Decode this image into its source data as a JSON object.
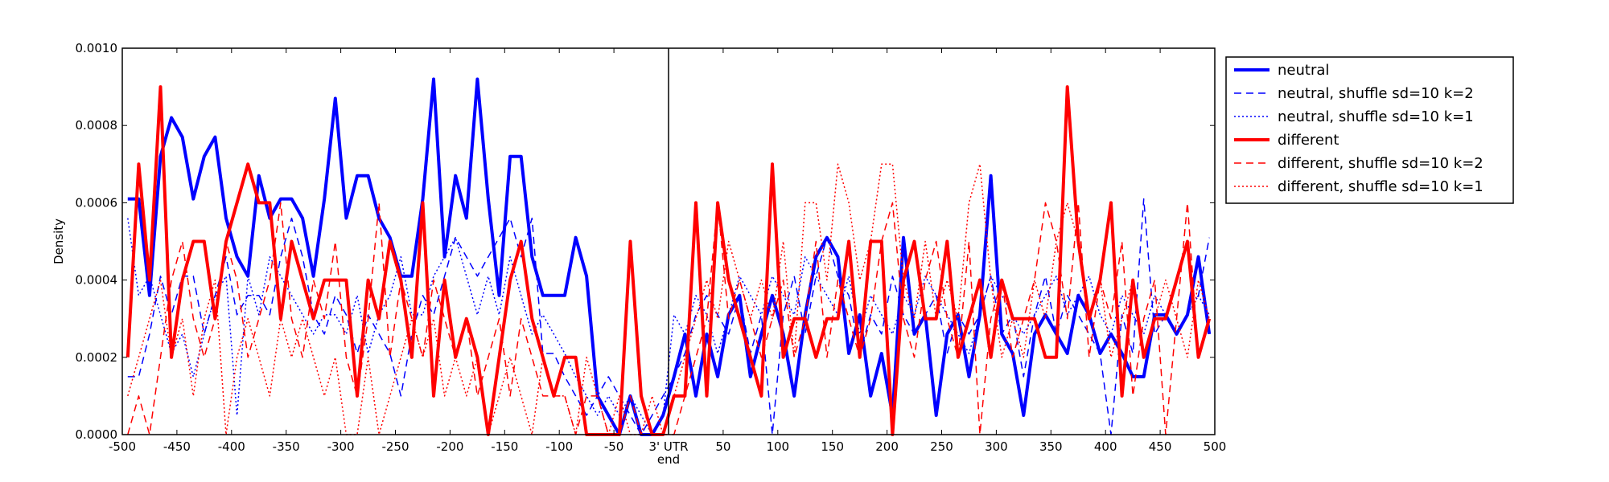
{
  "chart_data": {
    "type": "line",
    "xlabel": "end",
    "ylabel": "Density",
    "xlim": [
      -500,
      500
    ],
    "ylim": [
      0,
      0.001
    ],
    "grid": false,
    "legend_position": "outside-top-right",
    "x_ticks": [
      -500,
      -450,
      -400,
      -350,
      -300,
      -250,
      -200,
      -150,
      -100,
      -50,
      0,
      50,
      100,
      150,
      200,
      250,
      300,
      350,
      400,
      450,
      500
    ],
    "x_tick_labels": [
      "-500",
      "-450",
      "-400",
      "-350",
      "-300",
      "-250",
      "-200",
      "-150",
      "-100",
      "-50",
      "3' UTR",
      "50",
      "100",
      "150",
      "200",
      "250",
      "300",
      "350",
      "400",
      "450",
      "500"
    ],
    "y_ticks": [
      0,
      0.0002,
      0.0004,
      0.0006,
      0.0008,
      0.001
    ],
    "y_tick_labels": [
      "0.0000",
      "0.0002",
      "0.0004",
      "0.0006",
      "0.0008",
      "0.0010"
    ],
    "vline_x": 0,
    "x": [
      -495,
      -485,
      -475,
      -465,
      -455,
      -445,
      -435,
      -425,
      -415,
      -405,
      -395,
      -385,
      -375,
      -365,
      -355,
      -345,
      -335,
      -325,
      -315,
      -305,
      -295,
      -285,
      -275,
      -265,
      -255,
      -245,
      -235,
      -225,
      -215,
      -205,
      -195,
      -185,
      -175,
      -165,
      -155,
      -145,
      -135,
      -125,
      -115,
      -105,
      -95,
      -85,
      -75,
      -65,
      -55,
      -45,
      -35,
      -25,
      -15,
      -5,
      5,
      15,
      25,
      35,
      45,
      55,
      65,
      75,
      85,
      95,
      105,
      115,
      125,
      135,
      145,
      155,
      165,
      175,
      185,
      195,
      205,
      215,
      225,
      235,
      245,
      255,
      265,
      275,
      285,
      295,
      305,
      315,
      325,
      335,
      345,
      355,
      365,
      375,
      385,
      395,
      405,
      415,
      425,
      435,
      445,
      455,
      465,
      475,
      485,
      495
    ],
    "series": [
      {
        "name": "neutral",
        "color": "#0000ff",
        "style": "solid",
        "width": 4,
        "values": [
          0.00061,
          0.00061,
          0.00036,
          0.00072,
          0.00082,
          0.00077,
          0.00061,
          0.00072,
          0.00077,
          0.00056,
          0.00046,
          0.00041,
          0.00067,
          0.00056,
          0.00061,
          0.00061,
          0.00056,
          0.00041,
          0.00061,
          0.00087,
          0.00056,
          0.00067,
          0.00067,
          0.00056,
          0.00051,
          0.00041,
          0.00041,
          0.00061,
          0.00092,
          0.00046,
          0.00067,
          0.00056,
          0.00092,
          0.00061,
          0.00036,
          0.00072,
          0.00072,
          0.00046,
          0.00036,
          0.00036,
          0.00036,
          0.00051,
          0.00041,
          0.0001,
          5e-05,
          0.0,
          0.0001,
          0.0,
          0.0,
          5e-05,
          0.00015,
          0.00026,
          0.0001,
          0.00026,
          0.00015,
          0.00031,
          0.00036,
          0.00015,
          0.00026,
          0.00036,
          0.00026,
          0.0001,
          0.00031,
          0.00046,
          0.00051,
          0.00046,
          0.00021,
          0.00031,
          0.0001,
          0.00021,
          5e-05,
          0.00051,
          0.00026,
          0.00031,
          5e-05,
          0.00026,
          0.00031,
          0.00015,
          0.00031,
          0.00067,
          0.00026,
          0.00021,
          5e-05,
          0.00026,
          0.00031,
          0.00026,
          0.00021,
          0.00036,
          0.00031,
          0.00021,
          0.00026,
          0.00021,
          0.00015,
          0.00015,
          0.00031,
          0.00031,
          0.00026,
          0.00031,
          0.00046,
          0.00026
        ]
      },
      {
        "name": "neutral, shuffle sd=10 k=2",
        "color": "#0000ff",
        "style": "dashed",
        "width": 1.5,
        "values": [
          0.00015,
          0.00015,
          0.00026,
          0.00041,
          0.00031,
          0.00041,
          0.00041,
          0.00026,
          0.00036,
          0.00046,
          0.00031,
          0.00036,
          0.00036,
          0.00031,
          0.00046,
          0.00056,
          0.00046,
          0.00031,
          0.00026,
          0.00036,
          0.00031,
          0.00021,
          0.00031,
          0.00026,
          0.00021,
          0.0001,
          0.00026,
          0.00036,
          0.00031,
          0.00041,
          0.00051,
          0.00046,
          0.00041,
          0.00046,
          0.00051,
          0.00056,
          0.00046,
          0.00056,
          0.00021,
          0.00021,
          0.00015,
          0.0001,
          5e-05,
          0.0001,
          0.00015,
          0.0001,
          5e-05,
          0.0,
          5e-05,
          0.0001,
          0.00015,
          0.00021,
          0.00031,
          0.00036,
          0.00031,
          0.00026,
          0.00036,
          0.00021,
          0.00031,
          0.0,
          0.00031,
          0.00041,
          0.00026,
          0.00041,
          0.00051,
          0.00041,
          0.00036,
          0.00021,
          0.00031,
          0.00026,
          0.00041,
          0.00031,
          0.00026,
          0.00031,
          0.00036,
          0.00021,
          0.00031,
          0.00026,
          0.00031,
          0.00041,
          0.00026,
          0.00031,
          0.00015,
          0.00031,
          0.00041,
          0.00026,
          0.00036,
          0.00031,
          0.00026,
          0.00021,
          0.0,
          0.00031,
          0.00021,
          0.00061,
          0.00026,
          0.00031,
          0.00026,
          0.00031,
          0.00036,
          0.00051
        ]
      },
      {
        "name": "neutral, shuffle sd=10 k=1",
        "color": "#0000ff",
        "style": "dotted",
        "width": 1.5,
        "values": [
          0.00056,
          0.00036,
          0.00041,
          0.00031,
          0.00021,
          0.00026,
          0.00015,
          0.00026,
          0.00036,
          0.00041,
          5e-05,
          0.00041,
          0.00031,
          0.00046,
          0.00041,
          0.00036,
          0.00031,
          0.00026,
          0.00031,
          0.00031,
          0.00026,
          0.00036,
          0.00021,
          0.00031,
          0.00036,
          0.00046,
          0.00031,
          0.00031,
          0.00041,
          0.00046,
          0.00051,
          0.00041,
          0.00031,
          0.00041,
          0.00031,
          0.00046,
          0.00036,
          0.00026,
          0.00031,
          0.00026,
          0.00021,
          0.00015,
          0.0001,
          5e-05,
          0.0001,
          5e-05,
          0.0001,
          5e-05,
          0.0,
          5e-05,
          0.00031,
          0.00026,
          0.00036,
          0.00031,
          0.00021,
          0.00031,
          0.00041,
          0.00036,
          0.00031,
          0.00041,
          0.00036,
          0.00031,
          0.00046,
          0.00041,
          0.00036,
          0.00031,
          0.00041,
          0.00026,
          0.00036,
          0.00031,
          0.00026,
          0.00036,
          0.00031,
          0.00041,
          0.00036,
          0.00031,
          0.00026,
          0.00021,
          0.00031,
          0.00041,
          0.00036,
          0.00031,
          0.00026,
          0.00031,
          0.00036,
          0.00041,
          0.00031,
          0.00036,
          0.00041,
          0.00031,
          0.00026,
          0.00036,
          0.00031,
          0.00026,
          0.00036,
          0.00031,
          0.00026,
          0.00031,
          0.00036,
          0.00031
        ]
      },
      {
        "name": "different",
        "color": "#ff0000",
        "style": "solid",
        "width": 4,
        "values": [
          0.0002,
          0.0007,
          0.0004,
          0.0009,
          0.0002,
          0.0004,
          0.0005,
          0.0005,
          0.0003,
          0.0005,
          0.0006,
          0.0007,
          0.0006,
          0.0006,
          0.0003,
          0.0005,
          0.0004,
          0.0003,
          0.0004,
          0.0004,
          0.0004,
          0.0001,
          0.0004,
          0.0003,
          0.0005,
          0.0004,
          0.0002,
          0.0006,
          0.0001,
          0.0004,
          0.0002,
          0.0003,
          0.0002,
          0.0,
          0.0002,
          0.0004,
          0.0005,
          0.0003,
          0.0002,
          0.0001,
          0.0002,
          0.0002,
          0.0,
          0.0,
          0.0,
          0.0,
          0.0005,
          0.0001,
          0.0,
          0.0,
          0.0001,
          0.0001,
          0.0006,
          0.0001,
          0.0006,
          0.0004,
          0.0003,
          0.0002,
          0.0001,
          0.0007,
          0.0002,
          0.0003,
          0.0003,
          0.0002,
          0.0003,
          0.0003,
          0.0005,
          0.0002,
          0.0005,
          0.0005,
          0.0,
          0.0004,
          0.0005,
          0.0003,
          0.0003,
          0.0005,
          0.0002,
          0.0003,
          0.0004,
          0.0002,
          0.0004,
          0.0003,
          0.0003,
          0.0003,
          0.0002,
          0.0002,
          0.0009,
          0.0005,
          0.0003,
          0.0004,
          0.0006,
          0.0001,
          0.0004,
          0.0002,
          0.0003,
          0.0003,
          0.0004,
          0.0005,
          0.0002,
          0.0003
        ]
      },
      {
        "name": "different, shuffle sd=10 k=2",
        "color": "#ff0000",
        "style": "dashed",
        "width": 1.5,
        "values": [
          0.0,
          0.0001,
          0.0,
          0.0002,
          0.0004,
          0.0005,
          0.0003,
          0.0002,
          0.0003,
          0.0005,
          0.0004,
          0.0002,
          0.0003,
          0.0004,
          0.0006,
          0.0003,
          0.0002,
          0.0004,
          0.0003,
          0.0005,
          0.0002,
          0.0001,
          0.0003,
          0.0006,
          0.0002,
          0.0004,
          0.0003,
          0.0002,
          0.0004,
          0.0003,
          0.0002,
          0.0003,
          0.0001,
          0.0002,
          0.0003,
          0.0001,
          0.0003,
          0.0002,
          0.0001,
          0.0001,
          0.0001,
          0.0,
          0.0001,
          0.0001,
          0.0,
          0.0,
          0.0001,
          0.0,
          0.0,
          0.0,
          0.0,
          0.0001,
          0.0002,
          0.0003,
          0.0006,
          0.0003,
          0.0004,
          0.0003,
          0.0002,
          0.0003,
          0.0004,
          0.0002,
          0.0003,
          0.0005,
          0.0002,
          0.0004,
          0.0003,
          0.0002,
          0.0003,
          0.0005,
          0.0006,
          0.0003,
          0.0002,
          0.0004,
          0.0005,
          0.0003,
          0.0002,
          0.0005,
          0.0,
          0.0003,
          0.0004,
          0.0002,
          0.0003,
          0.0004,
          0.0006,
          0.0005,
          0.0003,
          0.0006,
          0.0002,
          0.0004,
          0.0003,
          0.0005,
          0.0001,
          0.0003,
          0.0004,
          0.0,
          0.0003,
          0.0006,
          0.0002,
          0.0003
        ]
      },
      {
        "name": "different, shuffle sd=10 k=1",
        "color": "#ff0000",
        "style": "dotted",
        "width": 1.5,
        "values": [
          0.0001,
          0.0002,
          0.0003,
          0.0004,
          0.0002,
          0.0003,
          0.0001,
          0.0003,
          0.0004,
          0.0,
          0.0002,
          0.0003,
          0.0002,
          0.0001,
          0.0003,
          0.0002,
          0.0003,
          0.0002,
          0.0001,
          0.0002,
          0.0,
          0.0,
          0.0002,
          0.0,
          0.0001,
          0.0002,
          0.0003,
          0.0002,
          0.0003,
          0.0001,
          0.0002,
          0.0001,
          0.0002,
          0.0,
          0.0001,
          0.0002,
          0.0001,
          0.0,
          0.0002,
          0.0001,
          0.0001,
          0.0,
          0.0002,
          0.0001,
          0.0,
          0.0001,
          0.0,
          0.0,
          0.0001,
          0.0,
          0.0001,
          0.0002,
          0.0003,
          0.0004,
          0.0003,
          0.0005,
          0.0004,
          0.0003,
          0.0004,
          0.0003,
          0.0005,
          0.0002,
          0.0006,
          0.0006,
          0.0004,
          0.0007,
          0.0006,
          0.0004,
          0.0005,
          0.0007,
          0.0007,
          0.0004,
          0.0003,
          0.0005,
          0.0003,
          0.0004,
          0.0003,
          0.0006,
          0.0007,
          0.0004,
          0.0002,
          0.0003,
          0.0002,
          0.0004,
          0.0003,
          0.0005,
          0.0006,
          0.0005,
          0.0003,
          0.0004,
          0.0002,
          0.0003,
          0.0004,
          0.0002,
          0.0003,
          0.0004,
          0.0003,
          0.0002,
          0.0004,
          0.0003
        ]
      }
    ]
  }
}
